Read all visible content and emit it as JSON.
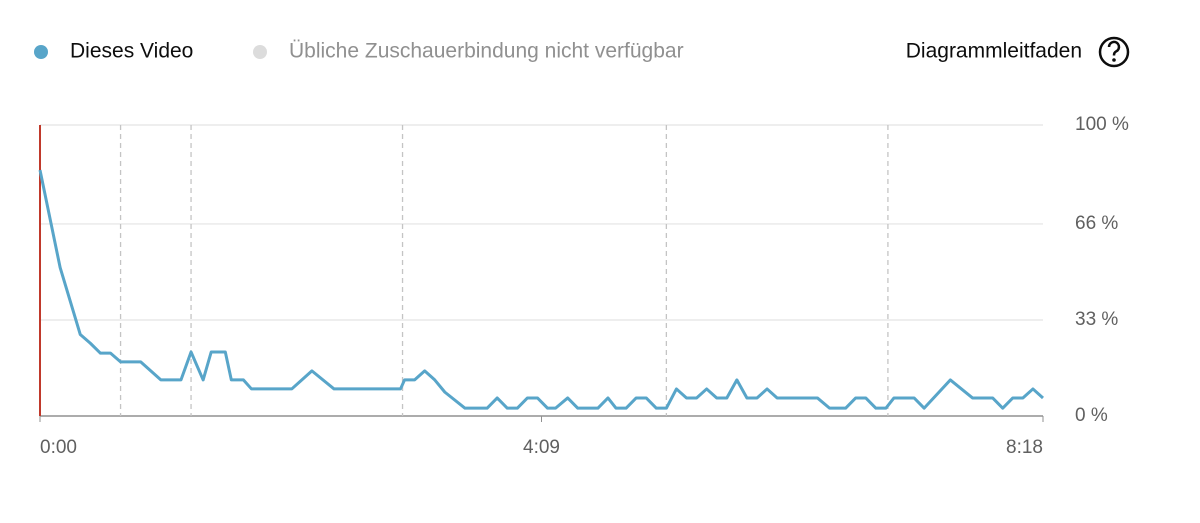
{
  "chart_data": {
    "type": "line",
    "series": [
      {
        "name": "Dieses Video",
        "color": "#58a5c9",
        "values": [
          84.5,
          51,
          28,
          25,
          21.6,
          21.6,
          18.6,
          18.6,
          12.4,
          12.4,
          22,
          12.4,
          22,
          22,
          12.4,
          12.4,
          9.3,
          9.3,
          15.5,
          9.3,
          9.3,
          12.4,
          12.4,
          15.5,
          12.4,
          8.2,
          2.7,
          2.7,
          6.2,
          2.7,
          2.7,
          6.2,
          6.2,
          2.7,
          2.7,
          6.2,
          2.7,
          2.7,
          6.2,
          2.7,
          2.7,
          6.2,
          6.2,
          2.7,
          2.7,
          9.3,
          6.2,
          6.2,
          9.3,
          6.2,
          6.2,
          12.4,
          6.2,
          6.2,
          9.3,
          6.2,
          6.2,
          2.7,
          2.7,
          6.2,
          6.2,
          2.7,
          2.7,
          6.2,
          6.2,
          2.7,
          12.4,
          6.2,
          6.2,
          2.7,
          6.2,
          6.2,
          9.3,
          6.2
        ]
      }
    ],
    "x": [
      0,
      10,
      20,
      25,
      30,
      35,
      40,
      50,
      60,
      70,
      75,
      81,
      85,
      92,
      95,
      101,
      105,
      125,
      135,
      146,
      179,
      181,
      186,
      191,
      196,
      201,
      211,
      222,
      227,
      232,
      237,
      242,
      247,
      252,
      256,
      262,
      267,
      277,
      282,
      286,
      291,
      296,
      301,
      306,
      311,
      316,
      321,
      326,
      331,
      336,
      341,
      346,
      351,
      356,
      361,
      366,
      386,
      392,
      400,
      405,
      410,
      415,
      420,
      424,
      434,
      439,
      452,
      463,
      473,
      478,
      483,
      488,
      493,
      498
    ],
    "unavailable_series": {
      "name": "Übliche Zuschauerbindung nicht verfügbar",
      "color": "#dcdcdc"
    },
    "guide_label": "Diagrammleitfaden",
    "xlim": [
      0,
      498
    ],
    "xticks": [
      {
        "value": 0,
        "label": "0:00"
      },
      {
        "value": 249,
        "label": "4:09"
      },
      {
        "value": 498,
        "label": "8:18"
      }
    ],
    "x_markers": [
      40,
      75,
      180,
      311,
      421
    ],
    "ylim": [
      0,
      100
    ],
    "yticks": [
      {
        "value": 0,
        "label": "0 %"
      },
      {
        "value": 33,
        "label": "33 %"
      },
      {
        "value": 66,
        "label": "66 %"
      },
      {
        "value": 100,
        "label": "100 %"
      }
    ],
    "grid": true
  }
}
